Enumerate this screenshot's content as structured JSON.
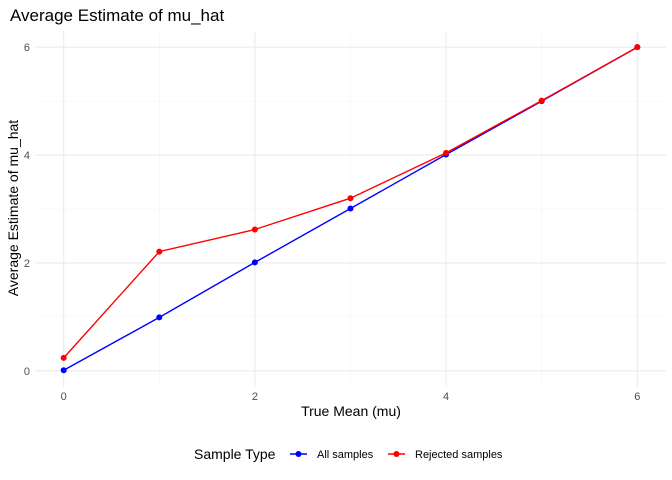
{
  "chart_data": {
    "type": "line",
    "title": "Average Estimate of mu_hat",
    "xlabel": "True Mean (mu)",
    "ylabel": "Average Estimate of mu_hat",
    "x": [
      0,
      1,
      2,
      3,
      4,
      5,
      6
    ],
    "xlim": [
      -0.3,
      6.3
    ],
    "ylim": [
      -0.3,
      6.3
    ],
    "xticks": [
      0,
      2,
      4,
      6
    ],
    "yticks": [
      0,
      2,
      4,
      6
    ],
    "grid": true,
    "legend": {
      "title": "Sample Type",
      "position": "bottom"
    },
    "series": [
      {
        "name": "All samples",
        "color": "#0000ff",
        "values": [
          0.01,
          0.99,
          2.01,
          3.01,
          4.01,
          5.0,
          6.0
        ]
      },
      {
        "name": "Rejected samples",
        "color": "#ff0000",
        "values": [
          0.24,
          2.21,
          2.62,
          3.2,
          4.04,
          5.01,
          6.0
        ]
      }
    ]
  }
}
